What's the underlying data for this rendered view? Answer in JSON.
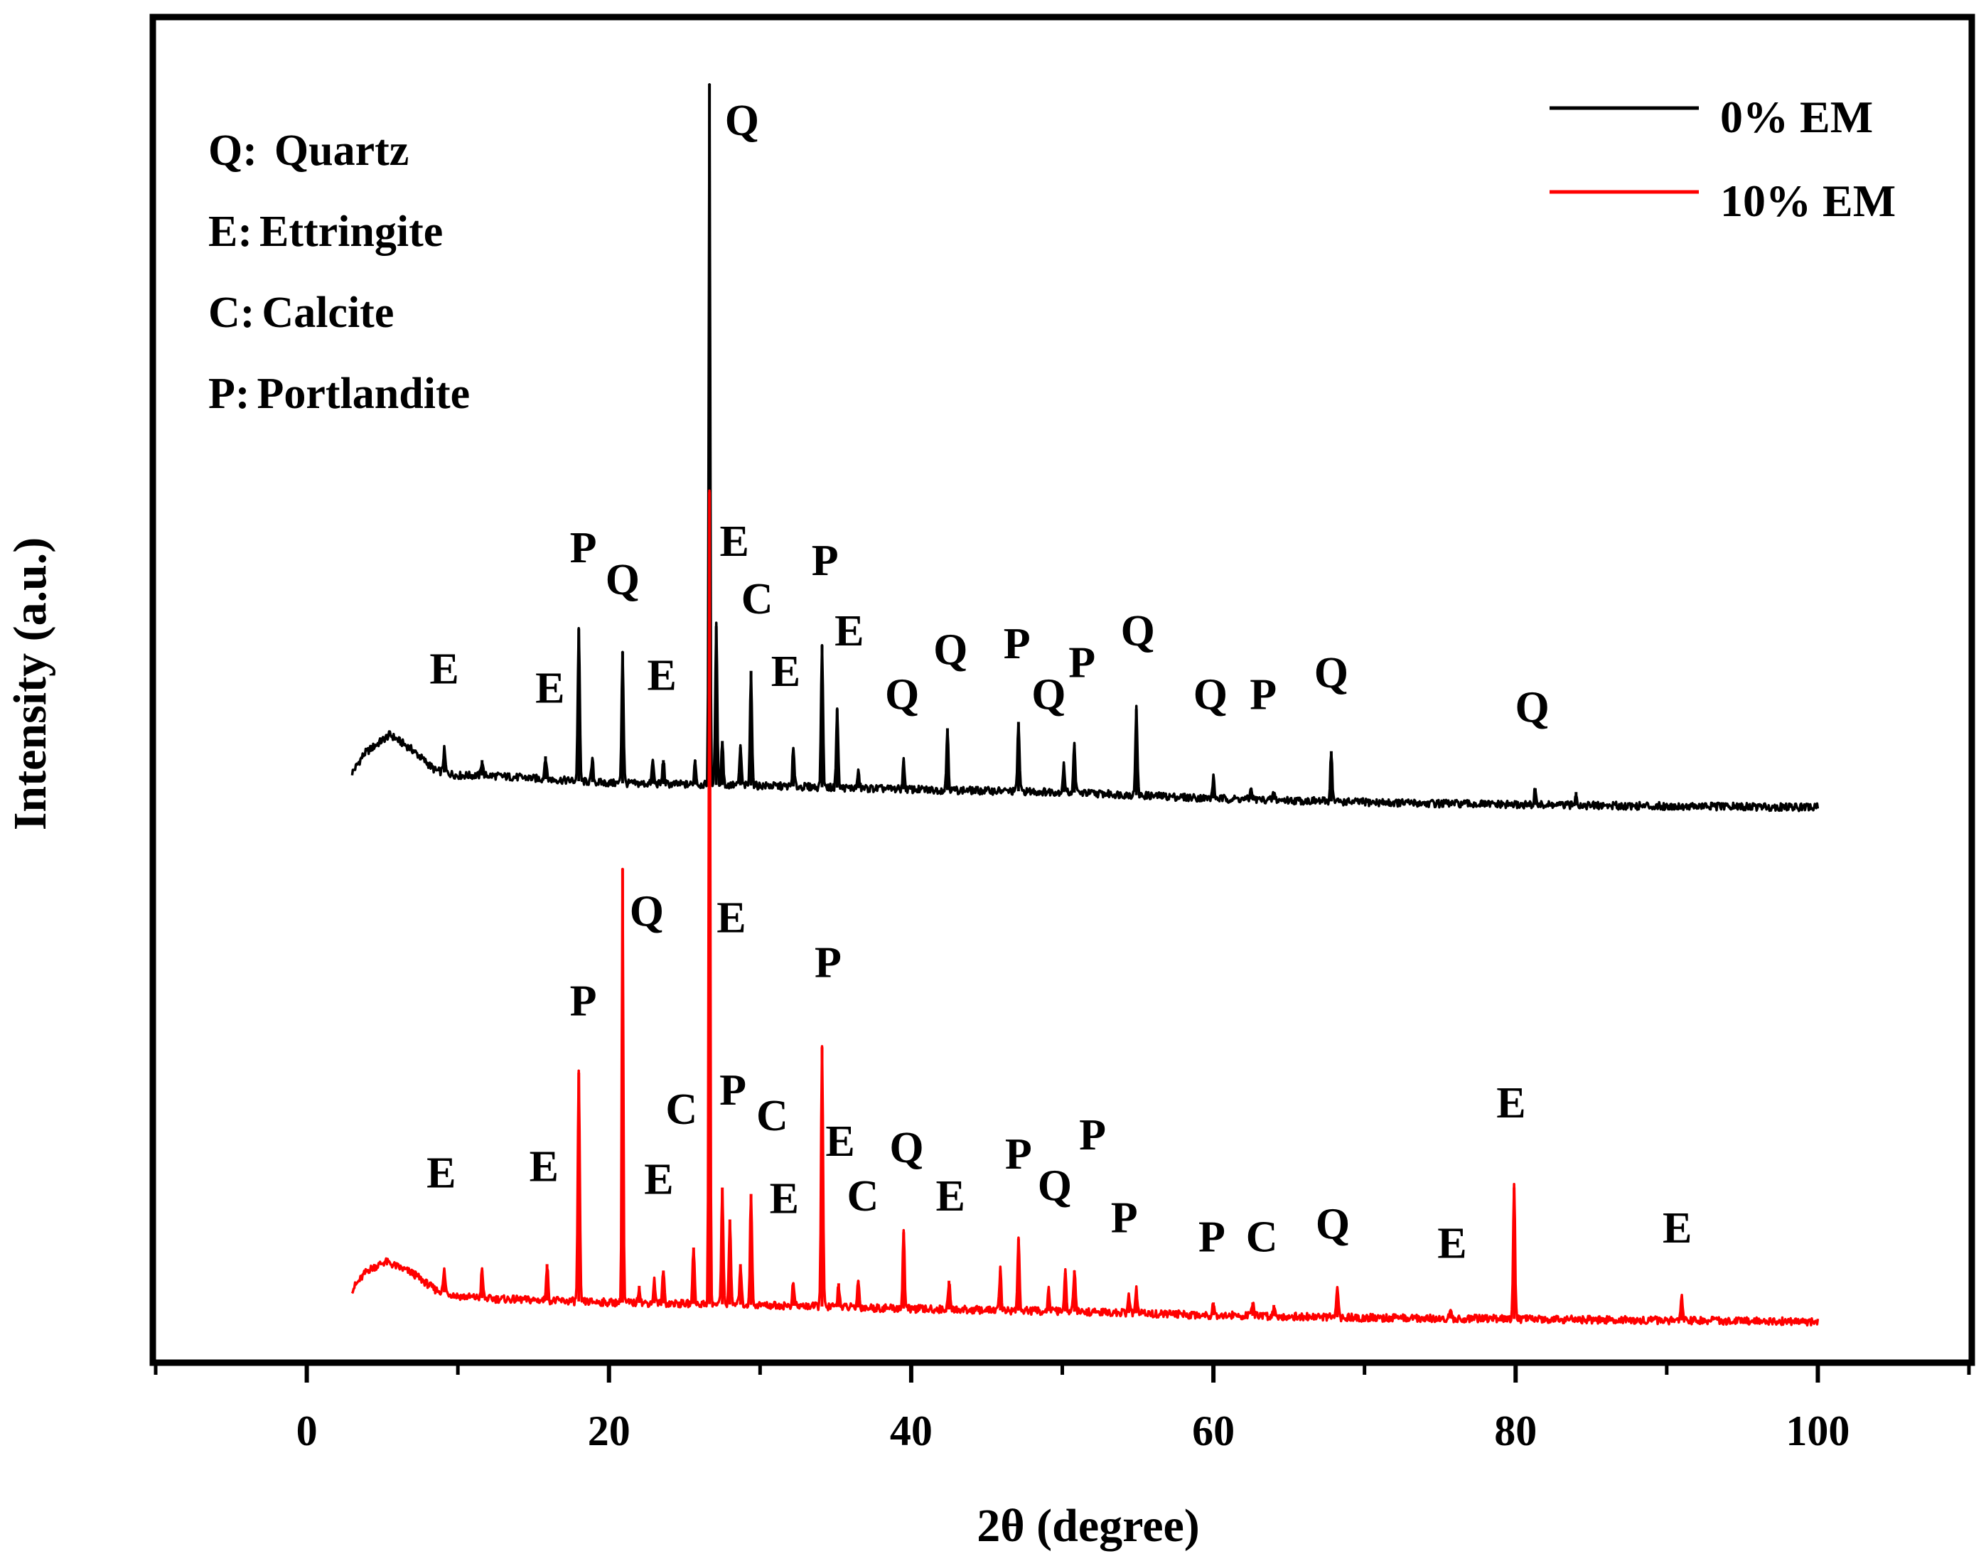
{
  "chart_data": {
    "type": "line",
    "title": "",
    "xlabel": "2θ (degree)",
    "ylabel": "Intensity (a.u.)",
    "xlim": [
      -10,
      110
    ],
    "ylim": [
      0,
      1
    ],
    "xticks": [
      0,
      20,
      40,
      60,
      80,
      100
    ],
    "xtick_labels": [
      "0",
      "20",
      "40",
      "60",
      "80",
      "100"
    ],
    "legend": {
      "position": "top-right"
    },
    "phase_key": [
      {
        "key": "Q:",
        "name": "Quartz"
      },
      {
        "key": "E:",
        "name": "Ettringite"
      },
      {
        "key": "C:",
        "name": "Calcite"
      },
      {
        "key": "P:",
        "name": "Portlandite"
      }
    ],
    "series": [
      {
        "name": "0% EM",
        "color": "#000000",
        "baseline": [
          [
            3,
            0.46
          ],
          [
            3.8,
            0.475
          ],
          [
            5.5,
            0.49
          ],
          [
            7,
            0.478
          ],
          [
            8.5,
            0.462
          ],
          [
            10,
            0.458
          ],
          [
            12,
            0.458
          ],
          [
            20,
            0.452
          ],
          [
            30,
            0.45
          ],
          [
            40,
            0.447
          ],
          [
            50,
            0.445
          ],
          [
            60,
            0.44
          ],
          [
            70,
            0.437
          ],
          [
            80,
            0.435
          ],
          [
            90,
            0.434
          ],
          [
            100,
            0.433
          ]
        ],
        "peaks": [
          {
            "x": 9.1,
            "y": 0.478,
            "label": "E"
          },
          {
            "x": 11.6,
            "y": 0.47,
            "label": ""
          },
          {
            "x": 15.8,
            "y": 0.473,
            "label": "E"
          },
          {
            "x": 18.0,
            "y": 0.573,
            "label": "P"
          },
          {
            "x": 18.9,
            "y": 0.47,
            "label": ""
          },
          {
            "x": 20.9,
            "y": 0.555,
            "label": "Q"
          },
          {
            "x": 22.9,
            "y": 0.469,
            "label": "E"
          },
          {
            "x": 23.6,
            "y": 0.47,
            "label": ""
          },
          {
            "x": 25.7,
            "y": 0.47,
            "label": ""
          },
          {
            "x": 26.65,
            "y": 1.0,
            "label": "Q"
          },
          {
            "x": 27.1,
            "y": 0.575,
            "label": "E"
          },
          {
            "x": 27.5,
            "y": 0.485,
            "label": ""
          },
          {
            "x": 28.7,
            "y": 0.48,
            "label": ""
          },
          {
            "x": 29.4,
            "y": 0.54,
            "label": "C"
          },
          {
            "x": 32.2,
            "y": 0.478,
            "label": "E"
          },
          {
            "x": 34.1,
            "y": 0.56,
            "label": "P"
          },
          {
            "x": 35.1,
            "y": 0.51,
            "label": "E"
          },
          {
            "x": 36.5,
            "y": 0.46,
            "label": ""
          },
          {
            "x": 39.5,
            "y": 0.469,
            "label": "Q"
          },
          {
            "x": 42.4,
            "y": 0.495,
            "label": "Q"
          },
          {
            "x": 47.1,
            "y": 0.5,
            "label": "P"
          },
          {
            "x": 50.1,
            "y": 0.466,
            "label": "Q"
          },
          {
            "x": 50.8,
            "y": 0.482,
            "label": "P"
          },
          {
            "x": 54.9,
            "y": 0.51,
            "label": "Q"
          },
          {
            "x": 60.0,
            "y": 0.456,
            "label": "Q"
          },
          {
            "x": 62.5,
            "y": 0.448,
            "label": "P"
          },
          {
            "x": 64.0,
            "y": 0.445,
            "label": ""
          },
          {
            "x": 67.8,
            "y": 0.477,
            "label": "Q"
          },
          {
            "x": 81.3,
            "y": 0.448,
            "label": "Q"
          },
          {
            "x": 84.0,
            "y": 0.445,
            "label": ""
          }
        ]
      },
      {
        "name": "10% EM",
        "color": "#ff0000",
        "baseline": [
          [
            3,
            0.055
          ],
          [
            4,
            0.07
          ],
          [
            5.2,
            0.077
          ],
          [
            7,
            0.068
          ],
          [
            8.5,
            0.055
          ],
          [
            10,
            0.05
          ],
          [
            12,
            0.048
          ],
          [
            20,
            0.045
          ],
          [
            30,
            0.043
          ],
          [
            40,
            0.04
          ],
          [
            50,
            0.038
          ],
          [
            60,
            0.035
          ],
          [
            70,
            0.033
          ],
          [
            80,
            0.032
          ],
          [
            90,
            0.031
          ],
          [
            100,
            0.03
          ]
        ],
        "peaks": [
          {
            "x": 9.1,
            "y": 0.07,
            "label": "E"
          },
          {
            "x": 11.6,
            "y": 0.07,
            "label": ""
          },
          {
            "x": 15.9,
            "y": 0.075,
            "label": "E"
          },
          {
            "x": 18.0,
            "y": 0.225,
            "label": "P"
          },
          {
            "x": 20.9,
            "y": 0.385,
            "label": "Q"
          },
          {
            "x": 22.0,
            "y": 0.058,
            "label": ""
          },
          {
            "x": 23.0,
            "y": 0.062,
            "label": ""
          },
          {
            "x": 23.6,
            "y": 0.07,
            "label": "E"
          },
          {
            "x": 25.6,
            "y": 0.088,
            "label": "C"
          },
          {
            "x": 26.65,
            "y": 0.68,
            "label": "E"
          },
          {
            "x": 27.5,
            "y": 0.135,
            "label": "P"
          },
          {
            "x": 28.0,
            "y": 0.11,
            "label": ""
          },
          {
            "x": 28.7,
            "y": 0.075,
            "label": ""
          },
          {
            "x": 29.4,
            "y": 0.13,
            "label": "C"
          },
          {
            "x": 32.2,
            "y": 0.06,
            "label": "E"
          },
          {
            "x": 34.1,
            "y": 0.245,
            "label": "P"
          },
          {
            "x": 35.2,
            "y": 0.06,
            "label": "E"
          },
          {
            "x": 36.5,
            "y": 0.062,
            "label": "C"
          },
          {
            "x": 39.5,
            "y": 0.1,
            "label": "Q"
          },
          {
            "x": 42.5,
            "y": 0.062,
            "label": "E"
          },
          {
            "x": 45.9,
            "y": 0.07,
            "label": ""
          },
          {
            "x": 47.1,
            "y": 0.095,
            "label": "P"
          },
          {
            "x": 49.1,
            "y": 0.055,
            "label": "Q"
          },
          {
            "x": 50.2,
            "y": 0.068,
            "label": ""
          },
          {
            "x": 50.8,
            "y": 0.07,
            "label": "P"
          },
          {
            "x": 54.4,
            "y": 0.05,
            "label": "P"
          },
          {
            "x": 54.9,
            "y": 0.055,
            "label": ""
          },
          {
            "x": 60.0,
            "y": 0.045,
            "label": "P"
          },
          {
            "x": 62.6,
            "y": 0.045,
            "label": "C"
          },
          {
            "x": 64.0,
            "y": 0.043,
            "label": ""
          },
          {
            "x": 68.2,
            "y": 0.055,
            "label": "Q"
          },
          {
            "x": 75.7,
            "y": 0.037,
            "label": "E"
          },
          {
            "x": 79.9,
            "y": 0.135,
            "label": "E"
          },
          {
            "x": 91.0,
            "y": 0.048,
            "label": "E"
          }
        ]
      }
    ],
    "annotations": [
      {
        "text": "Q",
        "x": 28.8,
        "y": 0.96,
        "series": "0% EM"
      },
      {
        "text": "P",
        "x": 18.3,
        "y": 0.625,
        "series": "0% EM"
      },
      {
        "text": "Q",
        "x": 20.9,
        "y": 0.6,
        "series": "0% EM"
      },
      {
        "text": "E",
        "x": 28.3,
        "y": 0.63,
        "series": "0% EM"
      },
      {
        "text": "C",
        "x": 29.8,
        "y": 0.585,
        "series": "0% EM"
      },
      {
        "text": "P",
        "x": 34.3,
        "y": 0.615,
        "series": "0% EM"
      },
      {
        "text": "E",
        "x": 35.9,
        "y": 0.56,
        "series": "0% EM"
      },
      {
        "text": "E",
        "x": 9.1,
        "y": 0.53,
        "series": "0% EM"
      },
      {
        "text": "E",
        "x": 16.1,
        "y": 0.515,
        "series": "0% EM"
      },
      {
        "text": "E",
        "x": 23.5,
        "y": 0.525,
        "series": "0% EM"
      },
      {
        "text": "E",
        "x": 31.7,
        "y": 0.528,
        "series": "0% EM"
      },
      {
        "text": "Q",
        "x": 39.4,
        "y": 0.51,
        "series": "0% EM"
      },
      {
        "text": "Q",
        "x": 42.6,
        "y": 0.545,
        "series": "0% EM"
      },
      {
        "text": "P",
        "x": 47.0,
        "y": 0.55,
        "series": "0% EM"
      },
      {
        "text": "Q",
        "x": 49.1,
        "y": 0.51,
        "series": "0% EM"
      },
      {
        "text": "P",
        "x": 51.3,
        "y": 0.535,
        "series": "0% EM"
      },
      {
        "text": "Q",
        "x": 55.0,
        "y": 0.56,
        "series": "0% EM"
      },
      {
        "text": "Q",
        "x": 59.8,
        "y": 0.51,
        "series": "0% EM"
      },
      {
        "text": "P",
        "x": 63.3,
        "y": 0.51,
        "series": "0% EM"
      },
      {
        "text": "Q",
        "x": 67.8,
        "y": 0.527,
        "series": "0% EM"
      },
      {
        "text": "Q",
        "x": 81.1,
        "y": 0.5,
        "series": "0% EM"
      },
      {
        "text": "E",
        "x": 8.9,
        "y": 0.135,
        "series": "10% EM"
      },
      {
        "text": "E",
        "x": 15.7,
        "y": 0.14,
        "series": "10% EM"
      },
      {
        "text": "P",
        "x": 18.3,
        "y": 0.27,
        "series": "10% EM"
      },
      {
        "text": "Q",
        "x": 22.5,
        "y": 0.34,
        "series": "10% EM"
      },
      {
        "text": "E",
        "x": 23.3,
        "y": 0.13,
        "series": "10% EM"
      },
      {
        "text": "C",
        "x": 24.8,
        "y": 0.185,
        "series": "10% EM"
      },
      {
        "text": "E",
        "x": 28.1,
        "y": 0.335,
        "series": "10% EM"
      },
      {
        "text": "P",
        "x": 28.2,
        "y": 0.2,
        "series": "10% EM"
      },
      {
        "text": "C",
        "x": 30.8,
        "y": 0.18,
        "series": "10% EM"
      },
      {
        "text": "E",
        "x": 31.6,
        "y": 0.115,
        "series": "10% EM"
      },
      {
        "text": "P",
        "x": 34.5,
        "y": 0.3,
        "series": "10% EM"
      },
      {
        "text": "E",
        "x": 35.3,
        "y": 0.16,
        "series": "10% EM"
      },
      {
        "text": "C",
        "x": 36.8,
        "y": 0.117,
        "series": "10% EM"
      },
      {
        "text": "Q",
        "x": 39.7,
        "y": 0.155,
        "series": "10% EM"
      },
      {
        "text": "E",
        "x": 42.6,
        "y": 0.117,
        "series": "10% EM"
      },
      {
        "text": "P",
        "x": 47.1,
        "y": 0.15,
        "series": "10% EM"
      },
      {
        "text": "Q",
        "x": 49.5,
        "y": 0.125,
        "series": "10% EM"
      },
      {
        "text": "P",
        "x": 52.0,
        "y": 0.165,
        "series": "10% EM"
      },
      {
        "text": "P",
        "x": 54.1,
        "y": 0.1,
        "series": "10% EM"
      },
      {
        "text": "P",
        "x": 59.9,
        "y": 0.085,
        "series": "10% EM"
      },
      {
        "text": "C",
        "x": 63.2,
        "y": 0.085,
        "series": "10% EM"
      },
      {
        "text": "Q",
        "x": 67.9,
        "y": 0.095,
        "series": "10% EM"
      },
      {
        "text": "E",
        "x": 75.8,
        "y": 0.08,
        "series": "10% EM"
      },
      {
        "text": "E",
        "x": 79.7,
        "y": 0.19,
        "series": "10% EM"
      },
      {
        "text": "E",
        "x": 90.7,
        "y": 0.092,
        "series": "10% EM"
      }
    ]
  }
}
